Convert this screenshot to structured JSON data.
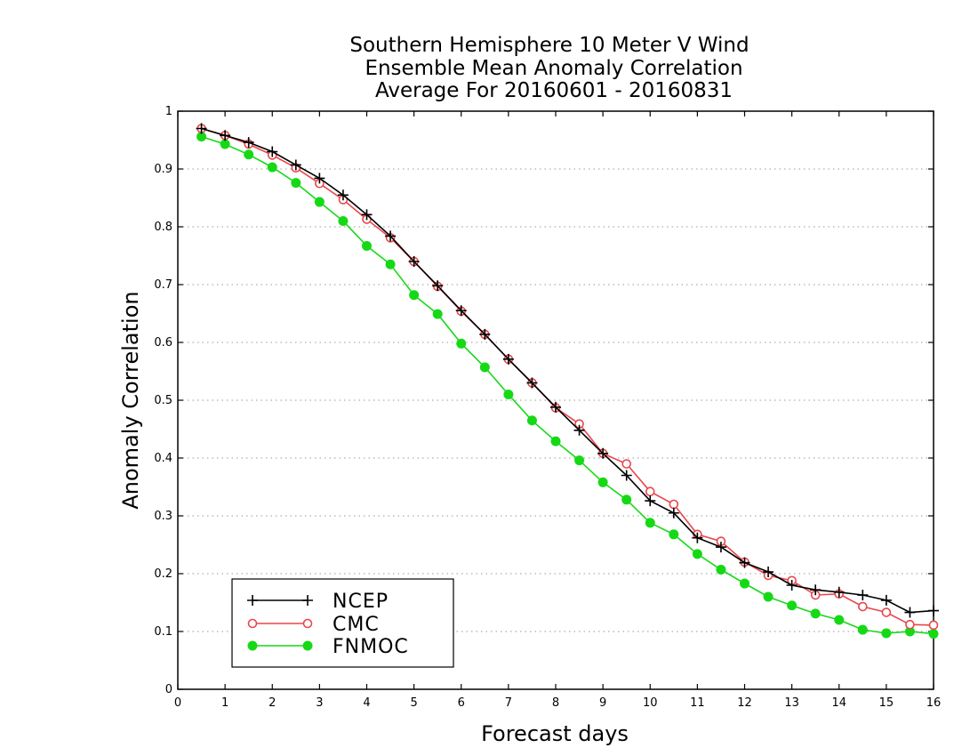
{
  "chart_data": {
    "type": "line",
    "title": [
      "Southern Hemisphere 10 Meter V Wind",
      "Ensemble Mean Anomaly Correlation",
      "Average For 20160601 - 20160831"
    ],
    "xlabel": "Forecast days",
    "ylabel": "Anomaly Correlation",
    "xlim": [
      0,
      16
    ],
    "ylim": [
      0,
      1
    ],
    "x_ticks": [
      "0",
      "1",
      "2",
      "3",
      "4",
      "5",
      "6",
      "7",
      "8",
      "9",
      "10",
      "11",
      "12",
      "13",
      "14",
      "15",
      "16"
    ],
    "y_ticks": [
      "0",
      "0.1",
      "0.2",
      "0.3",
      "0.4",
      "0.5",
      "0.6",
      "0.7",
      "0.8",
      "0.9",
      "1"
    ],
    "grid": "horizontal dotted",
    "legend_position": "bottom-left",
    "x": [
      0.5,
      1,
      1.5,
      2,
      2.5,
      3,
      3.5,
      4,
      4.5,
      5,
      5.5,
      6,
      6.5,
      7,
      7.5,
      8,
      8.5,
      9,
      9.5,
      10,
      10.5,
      11,
      11.5,
      12,
      12.5,
      13,
      13.5,
      14,
      14.5,
      15,
      15.5,
      16
    ],
    "series": [
      {
        "name": "NCEP",
        "color": "#000000",
        "marker": "plus",
        "values": [
          0.97,
          0.958,
          0.946,
          0.93,
          0.907,
          0.884,
          0.855,
          0.821,
          0.784,
          0.74,
          0.698,
          0.655,
          0.614,
          0.571,
          0.53,
          0.488,
          0.448,
          0.408,
          0.37,
          0.326,
          0.305,
          0.262,
          0.246,
          0.219,
          0.203,
          0.18,
          0.172,
          0.168,
          0.163,
          0.154,
          0.133,
          0.136
        ]
      },
      {
        "name": "CMC",
        "color": "#e8474c",
        "marker": "open-circle",
        "values": [
          0.97,
          0.958,
          0.943,
          0.924,
          0.902,
          0.875,
          0.847,
          0.813,
          0.781,
          0.74,
          0.697,
          0.654,
          0.614,
          0.571,
          0.53,
          0.487,
          0.459,
          0.408,
          0.39,
          0.342,
          0.32,
          0.268,
          0.256,
          0.22,
          0.197,
          0.188,
          0.163,
          0.165,
          0.143,
          0.133,
          0.112,
          0.111
        ]
      },
      {
        "name": "FNMOC",
        "color": "#16d916",
        "marker": "filled-circle",
        "values": [
          0.956,
          0.943,
          0.925,
          0.903,
          0.876,
          0.843,
          0.81,
          0.767,
          0.735,
          0.682,
          0.649,
          0.598,
          0.557,
          0.51,
          0.465,
          0.429,
          0.396,
          0.358,
          0.328,
          0.288,
          0.268,
          0.234,
          0.207,
          0.183,
          0.16,
          0.145,
          0.131,
          0.12,
          0.103,
          0.097,
          0.1,
          0.096
        ]
      }
    ]
  }
}
